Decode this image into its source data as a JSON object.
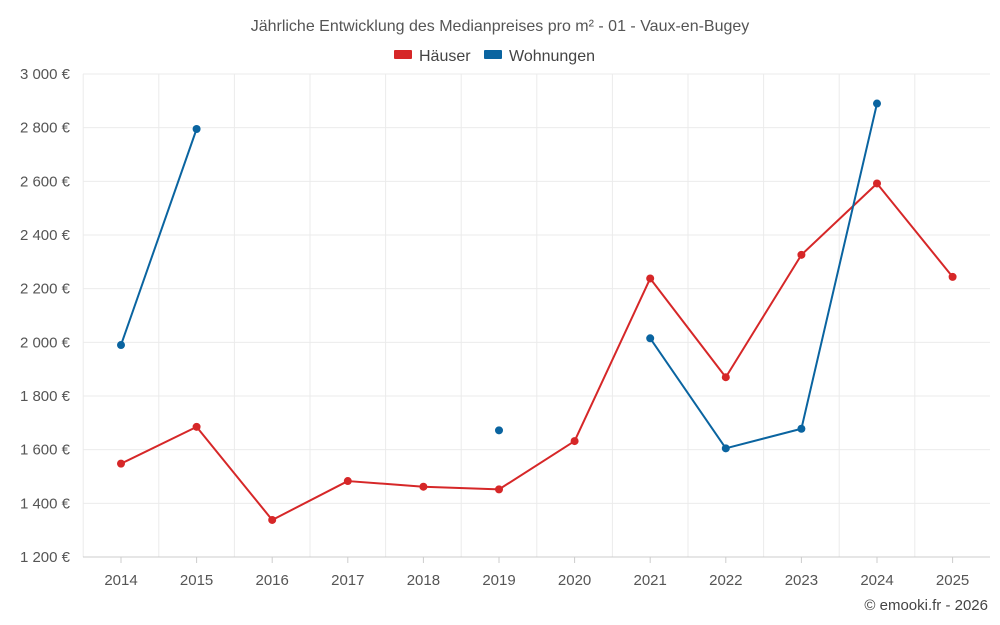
{
  "chart_data": {
    "type": "line",
    "title": "Jährliche Entwicklung des Medianpreises pro m² - 01 - Vaux-en-Bugey",
    "categories": [
      "2014",
      "2015",
      "2016",
      "2017",
      "2018",
      "2019",
      "2020",
      "2021",
      "2022",
      "2023",
      "2024",
      "2025"
    ],
    "ylim": [
      1200,
      3000
    ],
    "y_ticks": [
      1200,
      1400,
      1600,
      1800,
      2000,
      2200,
      2400,
      2600,
      2800,
      3000
    ],
    "y_tick_labels": [
      "1 200 €",
      "1 400 €",
      "1 600 €",
      "1 800 €",
      "2 000 €",
      "2 200 €",
      "2 400 €",
      "2 600 €",
      "2 800 €",
      "3 000 €"
    ],
    "grid": true,
    "legend_position": "top-center",
    "series": [
      {
        "name": "Häuser",
        "color": "#d62728",
        "values": [
          1548,
          1685,
          1338,
          1483,
          1462,
          1452,
          1632,
          2238,
          1870,
          2326,
          2592,
          2244
        ]
      },
      {
        "name": "Wohnungen",
        "color": "#0a64a0",
        "values": [
          1990,
          2795,
          null,
          null,
          null,
          1672,
          null,
          2015,
          1605,
          1678,
          2890,
          null
        ]
      }
    ]
  },
  "credit": "© emooki.fr - 2026"
}
